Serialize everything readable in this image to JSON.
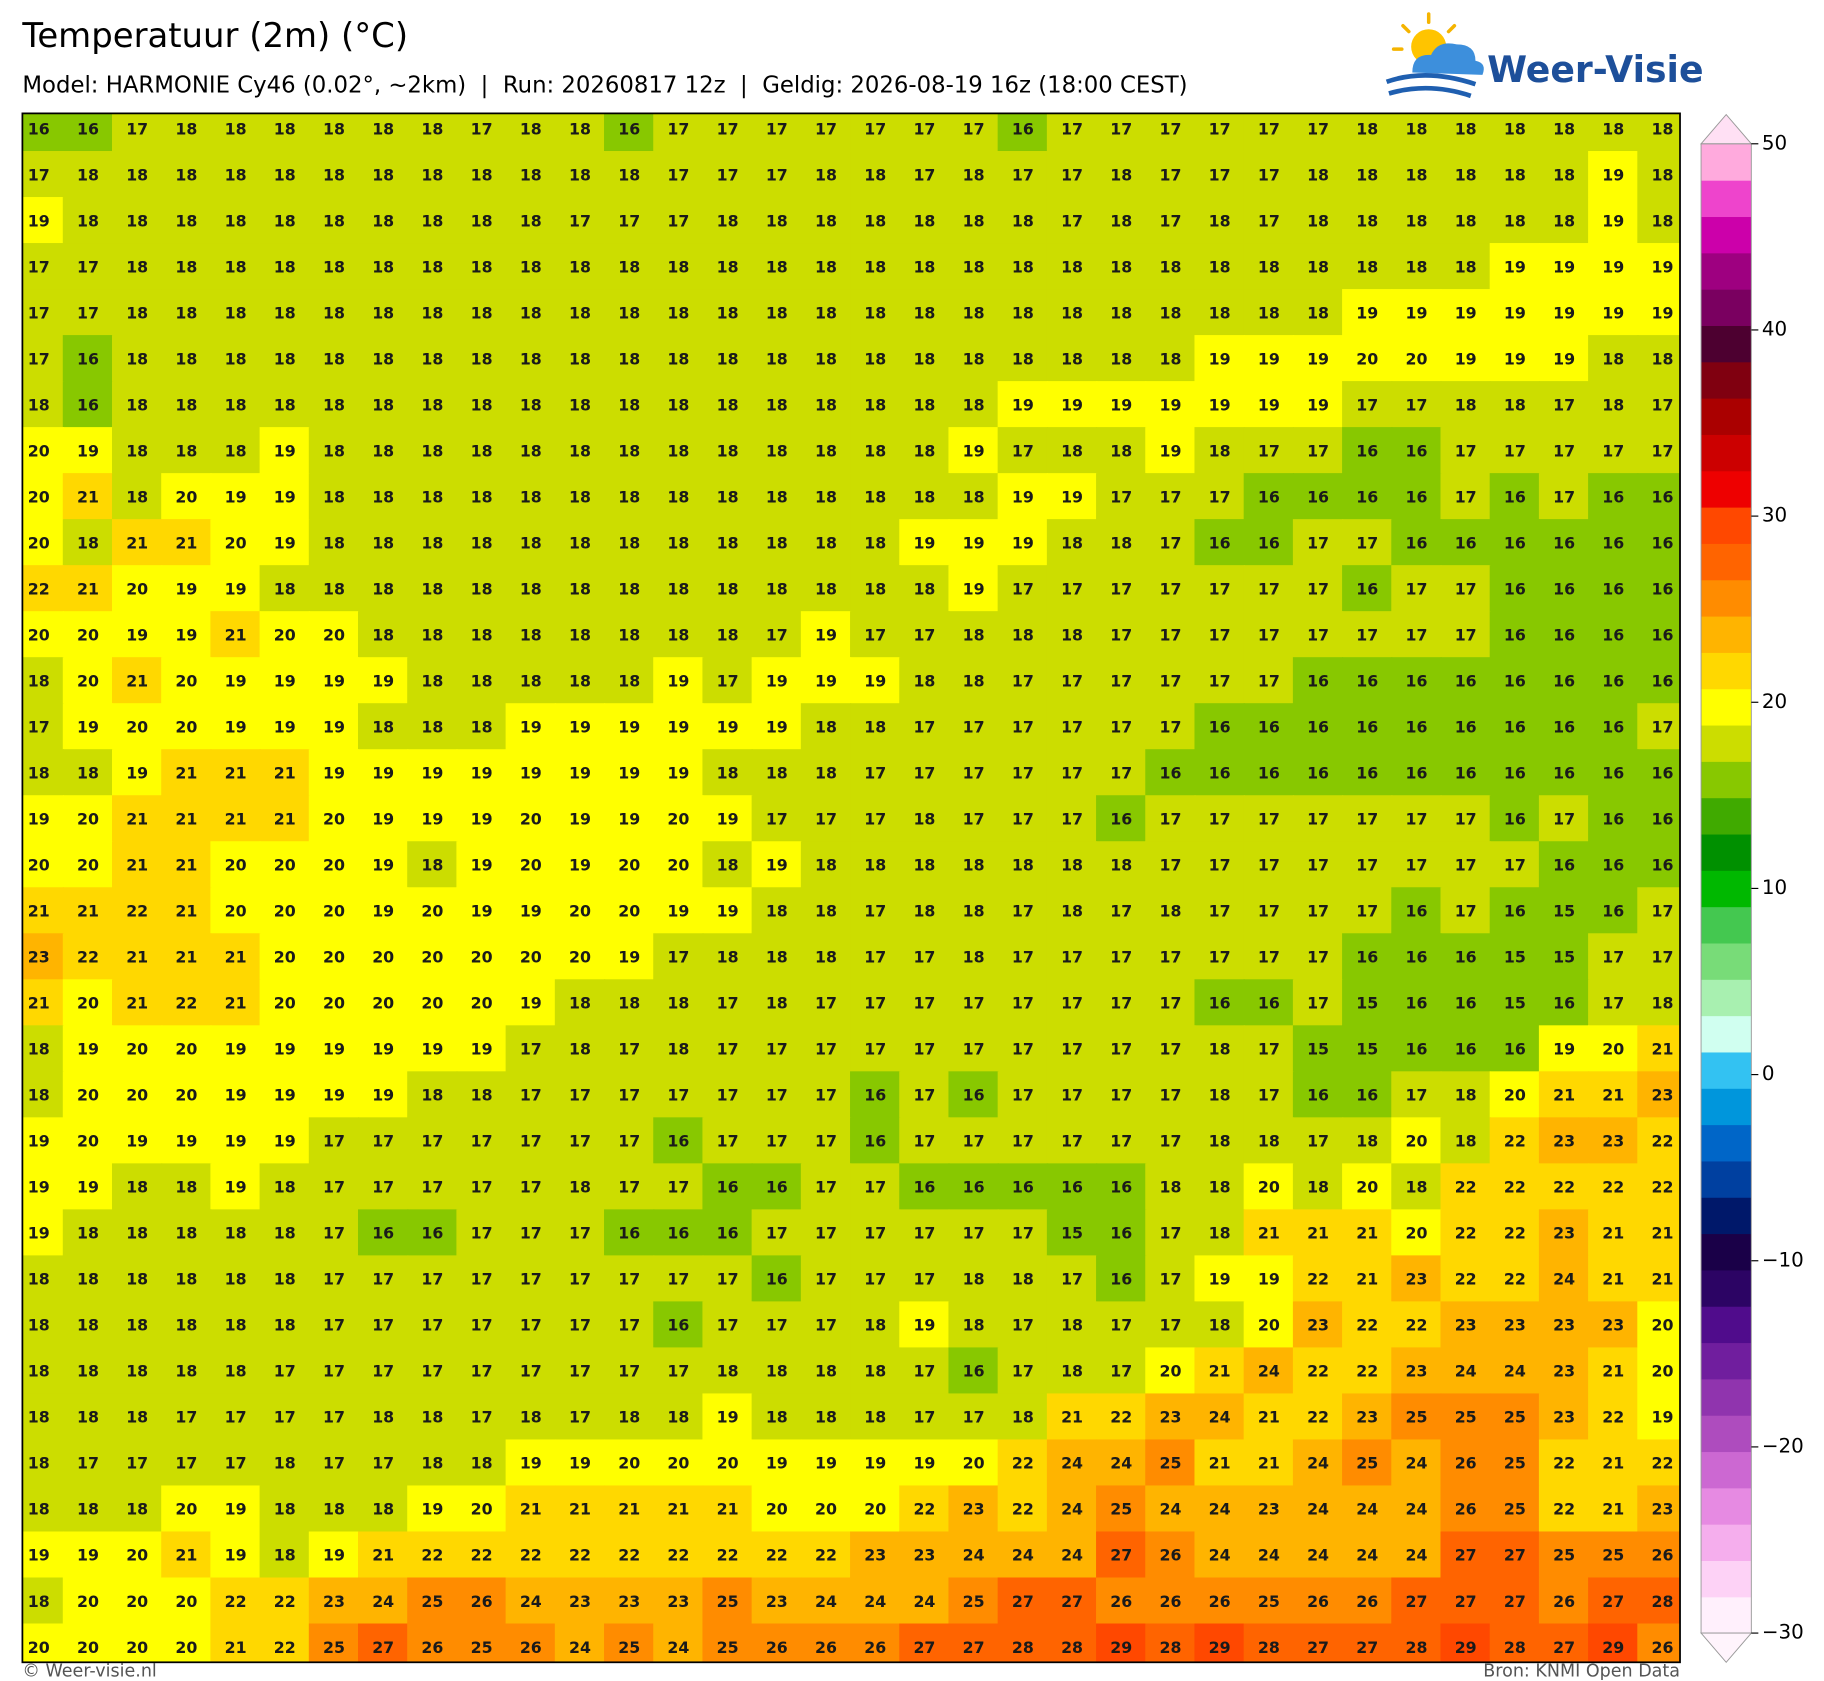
{
  "header": {
    "title": "Temperatuur (2m) (°C)",
    "subtitle": "Model: HARMONIE Cy46 (0.02°, ~2km)  |  Run: 20260817 12z  |  Geldig: 2026-08-19 16z (18:00 CEST)",
    "logo": "Weer-Visie"
  },
  "chart_data": {
    "type": "heatmap",
    "values": [
      [
        16,
        16,
        17,
        18,
        18,
        18,
        18,
        18,
        18,
        17,
        18,
        18,
        16,
        17,
        17,
        17,
        17,
        17,
        17,
        17,
        16,
        17,
        17,
        17,
        17,
        17,
        17,
        18,
        18,
        18,
        18,
        18,
        18,
        18
      ],
      [
        17,
        18,
        18,
        18,
        18,
        18,
        18,
        18,
        18,
        18,
        18,
        18,
        18,
        17,
        17,
        17,
        18,
        18,
        17,
        18,
        17,
        17,
        18,
        17,
        17,
        17,
        18,
        18,
        18,
        18,
        18,
        18,
        19,
        18
      ],
      [
        19,
        18,
        18,
        18,
        18,
        18,
        18,
        18,
        18,
        18,
        18,
        17,
        17,
        17,
        18,
        18,
        18,
        18,
        18,
        18,
        18,
        17,
        18,
        17,
        18,
        17,
        18,
        18,
        18,
        18,
        18,
        18,
        19,
        18
      ],
      [
        17,
        17,
        18,
        18,
        18,
        18,
        18,
        18,
        18,
        18,
        18,
        18,
        18,
        18,
        18,
        18,
        18,
        18,
        18,
        18,
        18,
        18,
        18,
        18,
        18,
        18,
        18,
        18,
        18,
        18,
        19,
        19,
        19,
        19
      ],
      [
        17,
        17,
        18,
        18,
        18,
        18,
        18,
        18,
        18,
        18,
        18,
        18,
        18,
        18,
        18,
        18,
        18,
        18,
        18,
        18,
        18,
        18,
        18,
        18,
        18,
        18,
        18,
        19,
        19,
        19,
        19,
        19,
        19,
        19
      ],
      [
        17,
        16,
        18,
        18,
        18,
        18,
        18,
        18,
        18,
        18,
        18,
        18,
        18,
        18,
        18,
        18,
        18,
        18,
        18,
        18,
        18,
        18,
        18,
        18,
        19,
        19,
        19,
        20,
        20,
        19,
        19,
        19,
        18,
        18
      ],
      [
        18,
        16,
        18,
        18,
        18,
        18,
        18,
        18,
        18,
        18,
        18,
        18,
        18,
        18,
        18,
        18,
        18,
        18,
        18,
        18,
        19,
        19,
        19,
        19,
        19,
        19,
        19,
        17,
        17,
        18,
        18,
        17,
        18,
        17
      ],
      [
        20,
        19,
        18,
        18,
        18,
        19,
        18,
        18,
        18,
        18,
        18,
        18,
        18,
        18,
        18,
        18,
        18,
        18,
        18,
        19,
        17,
        18,
        18,
        19,
        18,
        17,
        17,
        16,
        16,
        17,
        17,
        17,
        17,
        17
      ],
      [
        20,
        21,
        18,
        20,
        19,
        19,
        18,
        18,
        18,
        18,
        18,
        18,
        18,
        18,
        18,
        18,
        18,
        18,
        18,
        18,
        19,
        19,
        17,
        17,
        17,
        16,
        16,
        16,
        16,
        17,
        16,
        17,
        16,
        16
      ],
      [
        20,
        18,
        21,
        21,
        20,
        19,
        18,
        18,
        18,
        18,
        18,
        18,
        18,
        18,
        18,
        18,
        18,
        18,
        19,
        19,
        19,
        18,
        18,
        17,
        16,
        16,
        17,
        17,
        16,
        16,
        16,
        16,
        16,
        16
      ],
      [
        22,
        21,
        20,
        19,
        19,
        18,
        18,
        18,
        18,
        18,
        18,
        18,
        18,
        18,
        18,
        18,
        18,
        18,
        18,
        19,
        17,
        17,
        17,
        17,
        17,
        17,
        17,
        16,
        17,
        17,
        16,
        16,
        16,
        16
      ],
      [
        20,
        20,
        19,
        19,
        21,
        20,
        20,
        18,
        18,
        18,
        18,
        18,
        18,
        18,
        18,
        17,
        19,
        17,
        17,
        18,
        18,
        18,
        17,
        17,
        17,
        17,
        17,
        17,
        17,
        17,
        16,
        16,
        16,
        16
      ],
      [
        18,
        20,
        21,
        20,
        19,
        19,
        19,
        19,
        18,
        18,
        18,
        18,
        18,
        19,
        17,
        19,
        19,
        19,
        18,
        18,
        17,
        17,
        17,
        17,
        17,
        17,
        16,
        16,
        16,
        16,
        16,
        16,
        16,
        16
      ],
      [
        17,
        19,
        20,
        20,
        19,
        19,
        19,
        18,
        18,
        18,
        19,
        19,
        19,
        19,
        19,
        19,
        18,
        18,
        17,
        17,
        17,
        17,
        17,
        17,
        16,
        16,
        16,
        16,
        16,
        16,
        16,
        16,
        16,
        17
      ],
      [
        18,
        18,
        19,
        21,
        21,
        21,
        19,
        19,
        19,
        19,
        19,
        19,
        19,
        19,
        18,
        18,
        18,
        17,
        17,
        17,
        17,
        17,
        17,
        16,
        16,
        16,
        16,
        16,
        16,
        16,
        16,
        16,
        16,
        16
      ],
      [
        19,
        20,
        21,
        21,
        21,
        21,
        20,
        19,
        19,
        19,
        20,
        19,
        19,
        20,
        19,
        17,
        17,
        17,
        18,
        17,
        17,
        17,
        16,
        17,
        17,
        17,
        17,
        17,
        17,
        17,
        16,
        17,
        16,
        16
      ],
      [
        20,
        20,
        21,
        21,
        20,
        20,
        20,
        19,
        18,
        19,
        20,
        19,
        20,
        20,
        18,
        19,
        18,
        18,
        18,
        18,
        18,
        18,
        18,
        17,
        17,
        17,
        17,
        17,
        17,
        17,
        17,
        16,
        16,
        16
      ],
      [
        21,
        21,
        22,
        21,
        20,
        20,
        20,
        19,
        20,
        19,
        19,
        20,
        20,
        19,
        19,
        18,
        18,
        17,
        18,
        18,
        17,
        18,
        17,
        18,
        17,
        17,
        17,
        17,
        16,
        17,
        16,
        15,
        16,
        17
      ],
      [
        23,
        22,
        21,
        21,
        21,
        20,
        20,
        20,
        20,
        20,
        20,
        20,
        19,
        17,
        18,
        18,
        18,
        17,
        17,
        18,
        17,
        17,
        17,
        17,
        17,
        17,
        17,
        16,
        16,
        16,
        15,
        15,
        17,
        17
      ],
      [
        21,
        20,
        21,
        22,
        21,
        20,
        20,
        20,
        20,
        20,
        19,
        18,
        18,
        18,
        17,
        18,
        17,
        17,
        17,
        17,
        17,
        17,
        17,
        17,
        16,
        16,
        17,
        15,
        16,
        16,
        15,
        16,
        17,
        18
      ],
      [
        18,
        19,
        20,
        20,
        19,
        19,
        19,
        19,
        19,
        19,
        17,
        18,
        17,
        18,
        17,
        17,
        17,
        17,
        17,
        17,
        17,
        17,
        17,
        17,
        18,
        17,
        15,
        15,
        16,
        16,
        16,
        19,
        20,
        21
      ],
      [
        18,
        20,
        20,
        20,
        19,
        19,
        19,
        19,
        18,
        18,
        17,
        17,
        17,
        17,
        17,
        17,
        17,
        16,
        17,
        16,
        17,
        17,
        17,
        17,
        18,
        17,
        16,
        16,
        17,
        18,
        20,
        21,
        21,
        23
      ],
      [
        19,
        20,
        19,
        19,
        19,
        19,
        17,
        17,
        17,
        17,
        17,
        17,
        17,
        16,
        17,
        17,
        17,
        16,
        17,
        17,
        17,
        17,
        17,
        17,
        18,
        18,
        17,
        18,
        20,
        18,
        22,
        23,
        23,
        22
      ],
      [
        19,
        19,
        18,
        18,
        19,
        18,
        17,
        17,
        17,
        17,
        17,
        18,
        17,
        17,
        16,
        16,
        17,
        17,
        16,
        16,
        16,
        16,
        16,
        18,
        18,
        20,
        18,
        20,
        18,
        22,
        22,
        22,
        22,
        22
      ],
      [
        19,
        18,
        18,
        18,
        18,
        18,
        17,
        16,
        16,
        17,
        17,
        17,
        16,
        16,
        16,
        17,
        17,
        17,
        17,
        17,
        17,
        15,
        16,
        17,
        18,
        21,
        21,
        21,
        20,
        22,
        22,
        23,
        21,
        21
      ],
      [
        18,
        18,
        18,
        18,
        18,
        18,
        17,
        17,
        17,
        17,
        17,
        17,
        17,
        17,
        17,
        16,
        17,
        17,
        17,
        18,
        18,
        17,
        16,
        17,
        19,
        19,
        22,
        21,
        23,
        22,
        22,
        24,
        21,
        21
      ],
      [
        18,
        18,
        18,
        18,
        18,
        18,
        17,
        17,
        17,
        17,
        17,
        17,
        17,
        16,
        17,
        17,
        17,
        18,
        19,
        18,
        17,
        18,
        17,
        17,
        18,
        20,
        23,
        22,
        22,
        23,
        23,
        23,
        23,
        20
      ],
      [
        18,
        18,
        18,
        18,
        18,
        17,
        17,
        17,
        17,
        17,
        17,
        17,
        17,
        17,
        18,
        18,
        18,
        18,
        17,
        16,
        17,
        18,
        17,
        20,
        21,
        24,
        22,
        22,
        23,
        24,
        24,
        23,
        21,
        20
      ],
      [
        18,
        18,
        18,
        17,
        17,
        17,
        17,
        18,
        18,
        17,
        18,
        17,
        18,
        18,
        19,
        18,
        18,
        18,
        17,
        17,
        18,
        21,
        22,
        23,
        24,
        21,
        22,
        23,
        25,
        25,
        25,
        23,
        22,
        19
      ],
      [
        18,
        17,
        17,
        17,
        17,
        18,
        17,
        17,
        18,
        18,
        19,
        19,
        20,
        20,
        20,
        19,
        19,
        19,
        19,
        20,
        22,
        24,
        24,
        25,
        21,
        21,
        24,
        25,
        24,
        26,
        25,
        22,
        21,
        22
      ],
      [
        18,
        18,
        18,
        20,
        19,
        18,
        18,
        18,
        19,
        20,
        21,
        21,
        21,
        21,
        21,
        20,
        20,
        20,
        22,
        23,
        22,
        24,
        25,
        24,
        24,
        23,
        24,
        24,
        24,
        26,
        25,
        22,
        21,
        23
      ],
      [
        19,
        19,
        20,
        21,
        19,
        18,
        19,
        21,
        22,
        22,
        22,
        22,
        22,
        22,
        22,
        22,
        22,
        23,
        23,
        24,
        24,
        24,
        27,
        26,
        24,
        24,
        24,
        24,
        24,
        27,
        27,
        25,
        25,
        26
      ],
      [
        18,
        20,
        20,
        20,
        22,
        22,
        23,
        24,
        25,
        26,
        24,
        23,
        23,
        23,
        25,
        23,
        24,
        24,
        24,
        25,
        27,
        27,
        26,
        26,
        26,
        25,
        26,
        26,
        27,
        27,
        27,
        26,
        27,
        28
      ],
      [
        20,
        20,
        20,
        20,
        21,
        22,
        25,
        27,
        26,
        25,
        26,
        24,
        25,
        24,
        25,
        26,
        26,
        26,
        27,
        27,
        28,
        28,
        29,
        28,
        29,
        28,
        27,
        27,
        28,
        29,
        28,
        27,
        29,
        26
      ]
    ],
    "colorbar": {
      "lim": [
        -30,
        50
      ],
      "ticks": [
        {
          "value": -30,
          "label": "−30"
        },
        {
          "value": -20,
          "label": "−20"
        },
        {
          "value": -10,
          "label": "−10"
        },
        0,
        10,
        20,
        30,
        40,
        50
      ],
      "colors": [
        "#fff0fc",
        "#fdd2f6",
        "#f5aeed",
        "#e68ae2",
        "#cc68d2",
        "#ae4cbe",
        "#9034ae",
        "#701e9e",
        "#500c8c",
        "#2c0464",
        "#1a0048",
        "#00186a",
        "#0040a0",
        "#0066c8",
        "#0096dc",
        "#33c2f2",
        "#d0fff0",
        "#a8f0b0",
        "#78dc78",
        "#44c850",
        "#00b800",
        "#009000",
        "#40aa00",
        "#88c800",
        "#ccdd00",
        "#ffff00",
        "#ffd800",
        "#ffb400",
        "#ff8c00",
        "#ff6400",
        "#ff4800",
        "#ee0000",
        "#cc0000",
        "#aa0000",
        "#800010",
        "#4d0030",
        "#7a0060",
        "#9e0080",
        "#cc00aa",
        "#ee44cc",
        "#ffaadd"
      ]
    }
  },
  "footer": {
    "left": "© Weer-visie.nl",
    "right": "Bron: KNMI Open Data"
  }
}
